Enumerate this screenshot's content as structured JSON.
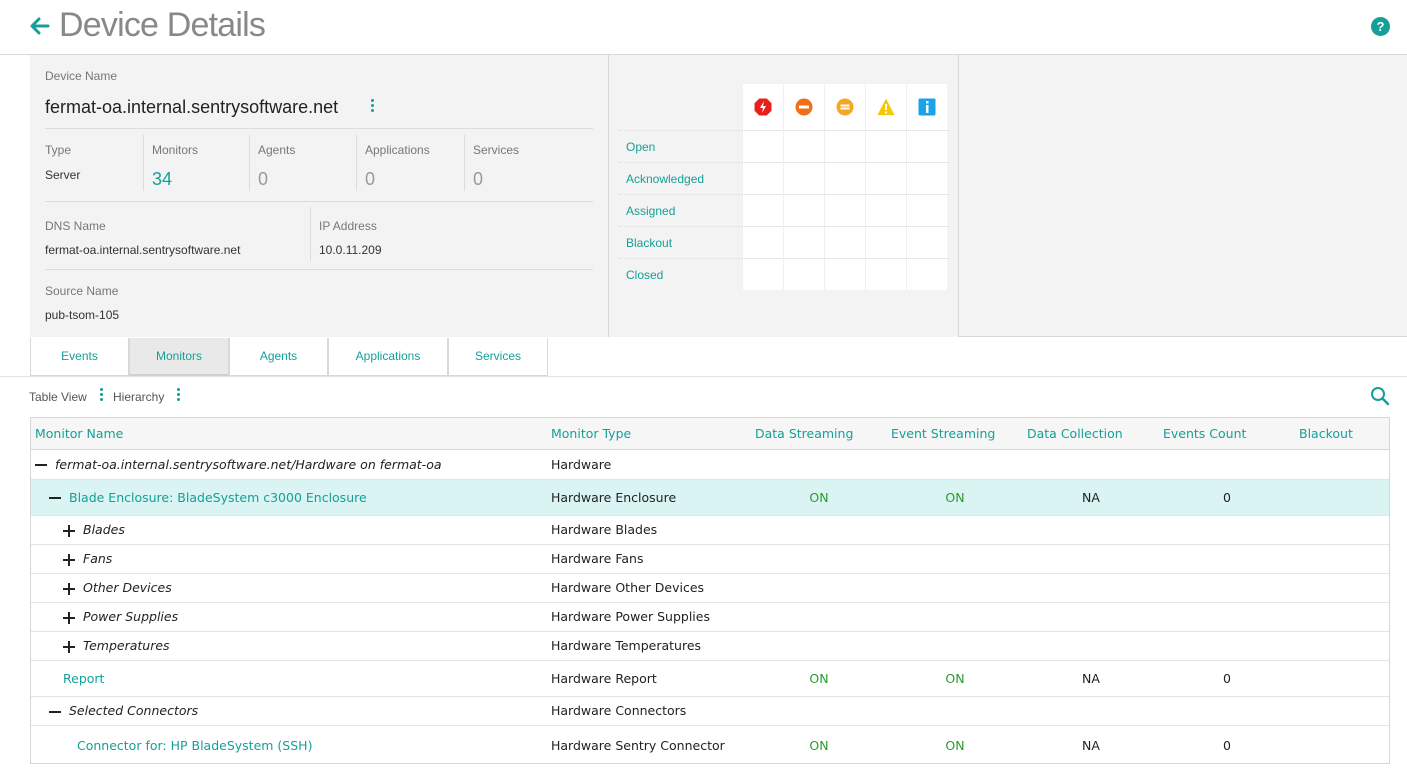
{
  "header": {
    "title": "Device Details"
  },
  "device": {
    "name_label": "Device Name",
    "name": "fermat-oa.internal.sentrysoftware.net",
    "type_label": "Type",
    "type": "Server",
    "monitors_label": "Monitors",
    "monitors": "34",
    "agents_label": "Agents",
    "agents": "0",
    "applications_label": "Applications",
    "applications": "0",
    "services_label": "Services",
    "services": "0",
    "dns_label": "DNS Name",
    "dns": "fermat-oa.internal.sentrysoftware.net",
    "ip_label": "IP Address",
    "ip": "10.0.11.209",
    "source_label": "Source Name",
    "source": "pub-tsom-105"
  },
  "status": {
    "severity_icons": [
      "critical-icon",
      "major-icon",
      "minor-icon",
      "warning-icon",
      "info-icon"
    ],
    "rows": [
      "Open",
      "Acknowledged",
      "Assigned",
      "Blackout",
      "Closed"
    ]
  },
  "tabs": [
    "Events",
    "Monitors",
    "Agents",
    "Applications",
    "Services"
  ],
  "active_tab": "Monitors",
  "toolbar": {
    "table_view": "Table View",
    "hierarchy": "Hierarchy"
  },
  "table": {
    "columns": [
      "Monitor Name",
      "Monitor Type",
      "Data Streaming",
      "Event Streaming",
      "Data Collection",
      "Events Count",
      "Blackout"
    ],
    "rows": [
      {
        "name": "fermat-oa.internal.sentrysoftware.net/Hardware on fermat-oa",
        "type": "Hardware",
        "data_streaming": "",
        "event_streaming": "",
        "data_collection": "",
        "events_count": "",
        "blackout": "",
        "toggle": "collapse"
      },
      {
        "name": "Blade Enclosure: BladeSystem c3000 Enclosure",
        "type": "Hardware Enclosure",
        "data_streaming": "ON",
        "event_streaming": "ON",
        "data_collection": "NA",
        "events_count": "0",
        "blackout": "",
        "toggle": "collapse"
      },
      {
        "name": "Blades",
        "type": "Hardware Blades",
        "data_streaming": "",
        "event_streaming": "",
        "data_collection": "",
        "events_count": "",
        "blackout": "",
        "toggle": "expand"
      },
      {
        "name": "Fans",
        "type": "Hardware Fans",
        "data_streaming": "",
        "event_streaming": "",
        "data_collection": "",
        "events_count": "",
        "blackout": "",
        "toggle": "expand"
      },
      {
        "name": "Other Devices",
        "type": "Hardware Other Devices",
        "data_streaming": "",
        "event_streaming": "",
        "data_collection": "",
        "events_count": "",
        "blackout": "",
        "toggle": "expand"
      },
      {
        "name": "Power Supplies",
        "type": "Hardware Power Supplies",
        "data_streaming": "",
        "event_streaming": "",
        "data_collection": "",
        "events_count": "",
        "blackout": "",
        "toggle": "expand"
      },
      {
        "name": "Temperatures",
        "type": "Hardware Temperatures",
        "data_streaming": "",
        "event_streaming": "",
        "data_collection": "",
        "events_count": "",
        "blackout": "",
        "toggle": "expand"
      },
      {
        "name": "Report",
        "type": "Hardware Report",
        "data_streaming": "ON",
        "event_streaming": "ON",
        "data_collection": "NA",
        "events_count": "0",
        "blackout": "",
        "toggle": "none"
      },
      {
        "name": "Selected Connectors",
        "type": "Hardware Connectors",
        "data_streaming": "",
        "event_streaming": "",
        "data_collection": "",
        "events_count": "",
        "blackout": "",
        "toggle": "collapse"
      },
      {
        "name": "Connector for: HP BladeSystem (SSH)",
        "type": "Hardware Sentry Connector",
        "data_streaming": "ON",
        "event_streaming": "ON",
        "data_collection": "NA",
        "events_count": "0",
        "blackout": "",
        "toggle": "none"
      }
    ]
  },
  "colors": {
    "accent": "#14a098",
    "on": "#2a9a2a",
    "selected_row": "#d9f4f3",
    "critical": "#e8201c",
    "major": "#f07018",
    "minor": "#f5a623",
    "warning": "#f5c800",
    "info": "#1aa3e8"
  }
}
